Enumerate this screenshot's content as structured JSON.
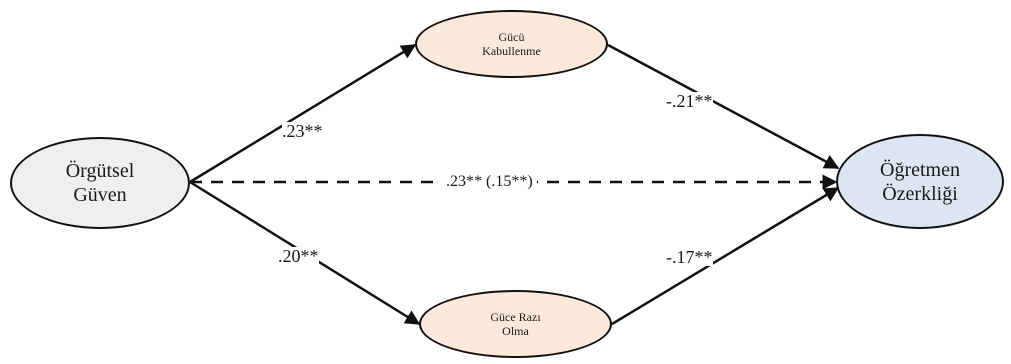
{
  "nodes": {
    "trust": {
      "line1": "Örgütsel",
      "line2": "Güven"
    },
    "accept": {
      "line1": "Gücü",
      "line2": "Kabullenme"
    },
    "consent": {
      "line1": "Güce Razı",
      "line2": "Olma"
    },
    "autonomy": {
      "line1": "Öğretmen",
      "line2": "Özerkliği"
    }
  },
  "paths": {
    "trust_to_accept": ".23**",
    "accept_to_autonomy": "-.21**",
    "trust_to_consent": ".20**",
    "consent_to_autonomy": "-.17**",
    "trust_to_autonomy_direct": ".23** (.15**)"
  },
  "colors": {
    "predictor_fill": "#efefef",
    "mediator_fill": "#fce9db",
    "outcome_fill": "#dce6f2",
    "stroke": "#111111"
  }
}
